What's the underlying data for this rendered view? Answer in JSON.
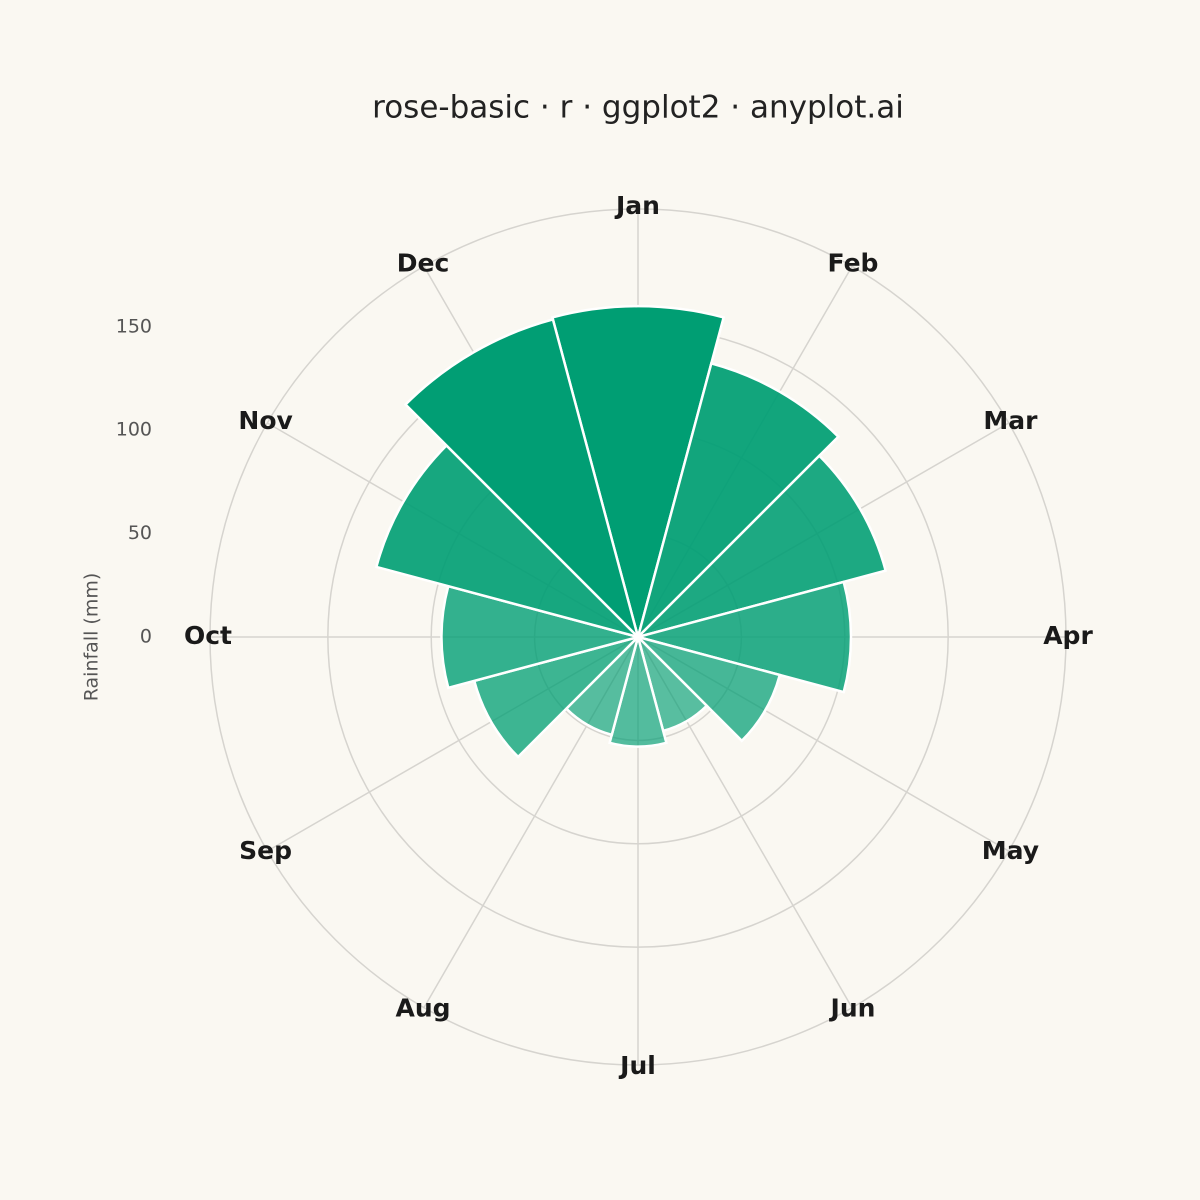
{
  "chart_data": {
    "type": "rose",
    "title": "rose-basic · r · ggplot2 · anyplot.ai",
    "y_label": "Rainfall (mm)",
    "categories": [
      "Jan",
      "Feb",
      "Mar",
      "Apr",
      "May",
      "Jun",
      "Jul",
      "Aug",
      "Sep",
      "Oct",
      "Nov",
      "Dec"
    ],
    "values": [
      160,
      137,
      124,
      103,
      71,
      47,
      53,
      49,
      82,
      95,
      131,
      159
    ],
    "color": "#009E73",
    "ylim": [
      0,
      207
    ],
    "yticks": [
      0,
      50,
      100,
      150
    ],
    "grid": true
  }
}
